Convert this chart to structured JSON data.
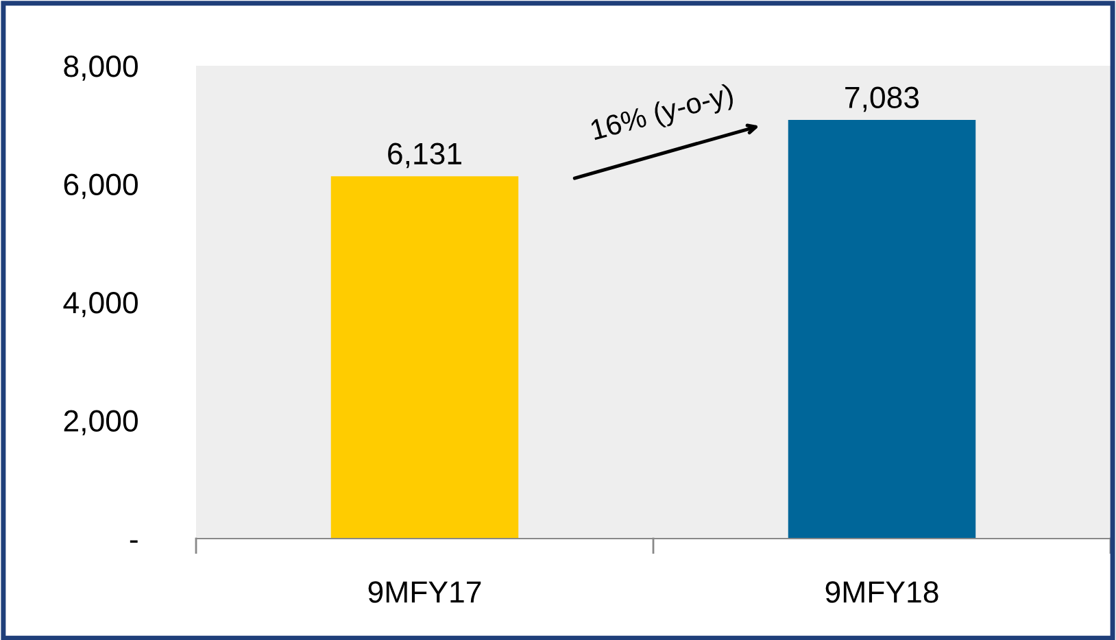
{
  "chart_data": {
    "type": "bar",
    "categories": [
      "9MFY17",
      "9MFY18"
    ],
    "values": [
      6131,
      7083
    ],
    "value_labels": [
      "6,131",
      "7,083"
    ],
    "colors": [
      "#ffcc00",
      "#006699"
    ],
    "ylim": [
      0,
      8000
    ],
    "yticks": [
      {
        "value": 0,
        "label": "-"
      },
      {
        "value": 2000,
        "label": "2,000"
      },
      {
        "value": 4000,
        "label": "4,000"
      },
      {
        "value": 6000,
        "label": "6,000"
      },
      {
        "value": 8000,
        "label": "8,000"
      }
    ],
    "annotations": [
      "16% (y-o-y)"
    ],
    "grid": false
  }
}
